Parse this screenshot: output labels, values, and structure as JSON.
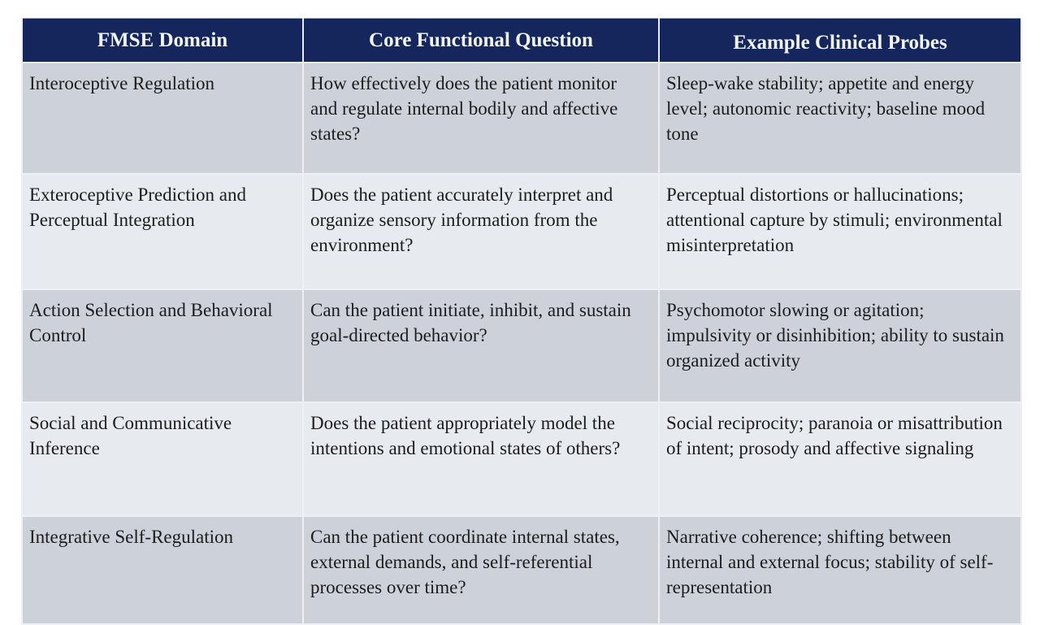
{
  "table": {
    "columns": [
      {
        "label": "FMSE Domain"
      },
      {
        "label": "Core Functional Question"
      },
      {
        "label": "Example Clinical Probes"
      }
    ],
    "rows": [
      {
        "cells": [
          "Interoceptive Regulation",
          "How effectively does the patient monitor and regulate internal bodily and affective states?",
          "Sleep-wake stability; appetite and energy level; autonomic reactivity; baseline mood tone"
        ]
      },
      {
        "cells": [
          "Exteroceptive Prediction and Perceptual Integration",
          "Does the patient accurately interpret and organize sensory information from the environment?",
          "Perceptual distortions or hallucinations; attentional capture by stimuli; environmental misinterpretation"
        ]
      },
      {
        "cells": [
          "Action Selection and Behavioral Control",
          "Can the patient initiate, inhibit, and sustain goal-directed behavior?",
          "Psychomotor slowing or agitation; impulsivity or disinhibition; ability to sustain organized activity"
        ]
      },
      {
        "cells": [
          "Social and Communicative Inference",
          "Does the patient appropriately model the intentions and emotional states of others?",
          "Social reciprocity; paranoia or misattribution of intent; prosody and affective signaling"
        ]
      },
      {
        "cells": [
          "Integrative Self-Regulation",
          "Can the patient coordinate internal states, external demands, and self-referential processes over time?",
          "Narrative coherence; shifting between internal and external focus; stability of self-representation"
        ]
      }
    ],
    "colors": {
      "header_bg": "#15265c",
      "header_text": "#f2f6fb",
      "row_odd_bg": "#ccd1da",
      "row_even_bg": "#e7eaee",
      "body_text": "#1c1c1c",
      "grid_line": "#eef0f3",
      "page_bg": "#ffffff"
    }
  }
}
